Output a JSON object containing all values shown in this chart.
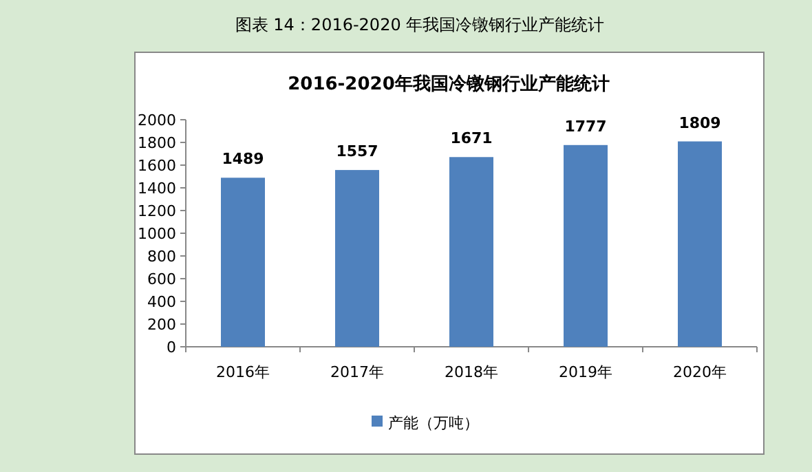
{
  "chart_data": {
    "type": "bar",
    "title": "2016-2020年我国冷镦钢行业产能统计",
    "annotations": [
      "图表 14：2016-2020 年我国冷镦钢行业产能统计"
    ],
    "categories": [
      "2016年",
      "2017年",
      "2018年",
      "2019年",
      "2020年"
    ],
    "series": [
      {
        "name": "产能（万吨）",
        "color": "#4f81bd",
        "values": [
          1489,
          1557,
          1671,
          1777,
          1809
        ]
      }
    ],
    "ylim": [
      0,
      2000
    ],
    "yticks": [
      0,
      200,
      400,
      600,
      800,
      1000,
      1200,
      1400,
      1600,
      1800,
      2000
    ],
    "data_labels": true,
    "legend": "bottom",
    "grid": false
  }
}
